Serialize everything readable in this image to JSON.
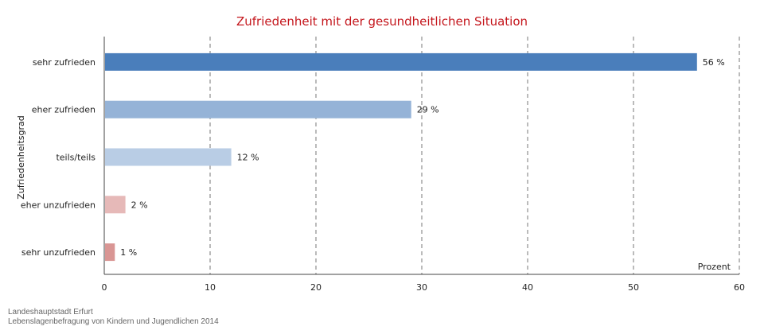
{
  "chart_data": {
    "type": "bar",
    "orientation": "horizontal",
    "title": "Zufriedenheit mit der gesundheitlichen Situation",
    "ylabel": "Zufriedenheitsgrad",
    "xlabel": "",
    "unit_label": "Prozent",
    "categories": [
      "sehr zufrieden",
      "eher zufrieden",
      "teils/teils",
      "eher unzufrieden",
      "sehr unzufrieden"
    ],
    "values": [
      56,
      29,
      12,
      2,
      1
    ],
    "value_labels": [
      "56 %",
      "29 %",
      "12 %",
      "2 %",
      "1 %"
    ],
    "colors": [
      "#4a7ebb",
      "#95b3d7",
      "#b9cde5",
      "#e6b9b8",
      "#d99694"
    ],
    "xlim": [
      0,
      60
    ],
    "x_ticks": [
      0,
      10,
      20,
      30,
      40,
      50,
      60
    ],
    "grid": true
  },
  "footer": {
    "line1": "Landeshauptstadt Erfurt",
    "line2": "Lebenslagenbefragung von Kindern und Jugendlichen 2014"
  }
}
